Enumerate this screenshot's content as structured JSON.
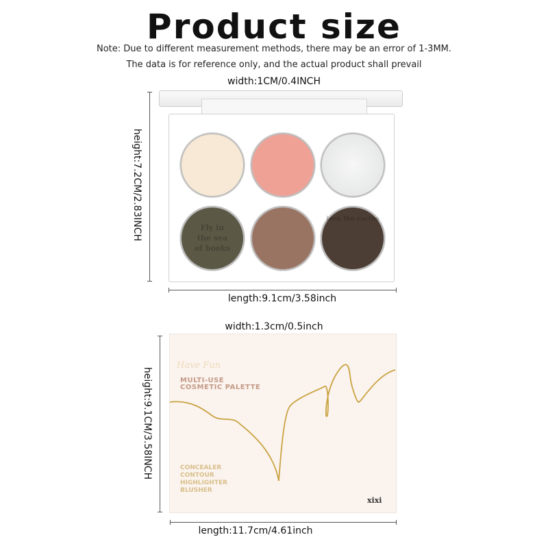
{
  "header": {
    "title": "Product size",
    "note_line1": "Note: Due to different measurement methods, there may be an error of 1-3MM.",
    "note_line2": "The data is for reference only, and the actual product shall prevail"
  },
  "palette_dimensions": {
    "width": "width:1CM/0.4INCH",
    "height": "height:7.2CM/2.83INCH",
    "length": "length:9.1cm/3.58inch"
  },
  "palette": {
    "pans": [
      {
        "color": "#f7e9d6",
        "engraving": ""
      },
      {
        "color": "#f0a196",
        "engraving": ""
      },
      {
        "color": "#e9ebea",
        "engraving": ""
      },
      {
        "color": "#5b5846",
        "engraving": "Fly in the sea of books"
      },
      {
        "color": "#9a7463",
        "engraving": ""
      },
      {
        "color": "#4d3e35",
        "engraving": "look the cactus"
      }
    ]
  },
  "box_dimensions": {
    "width": "width:1.3cm/0.5inch",
    "height": "height:9.1CM/3.58INCH",
    "length": "length:11.7cm/4.61inch"
  },
  "box": {
    "script_logo": "Have Fun",
    "title_line1": "MULTI-USE",
    "title_line2": "COSMETIC PALETTE",
    "uses": [
      "CONCEALER",
      "CONTOUR",
      "HIGHLIGHTER",
      "BLUSHER"
    ],
    "brand": "XIXI",
    "colors": {
      "background": "#fbf3ee",
      "title": "#c49a86",
      "uses": "#d8bf8a",
      "gold_line": "#c9a341"
    }
  }
}
